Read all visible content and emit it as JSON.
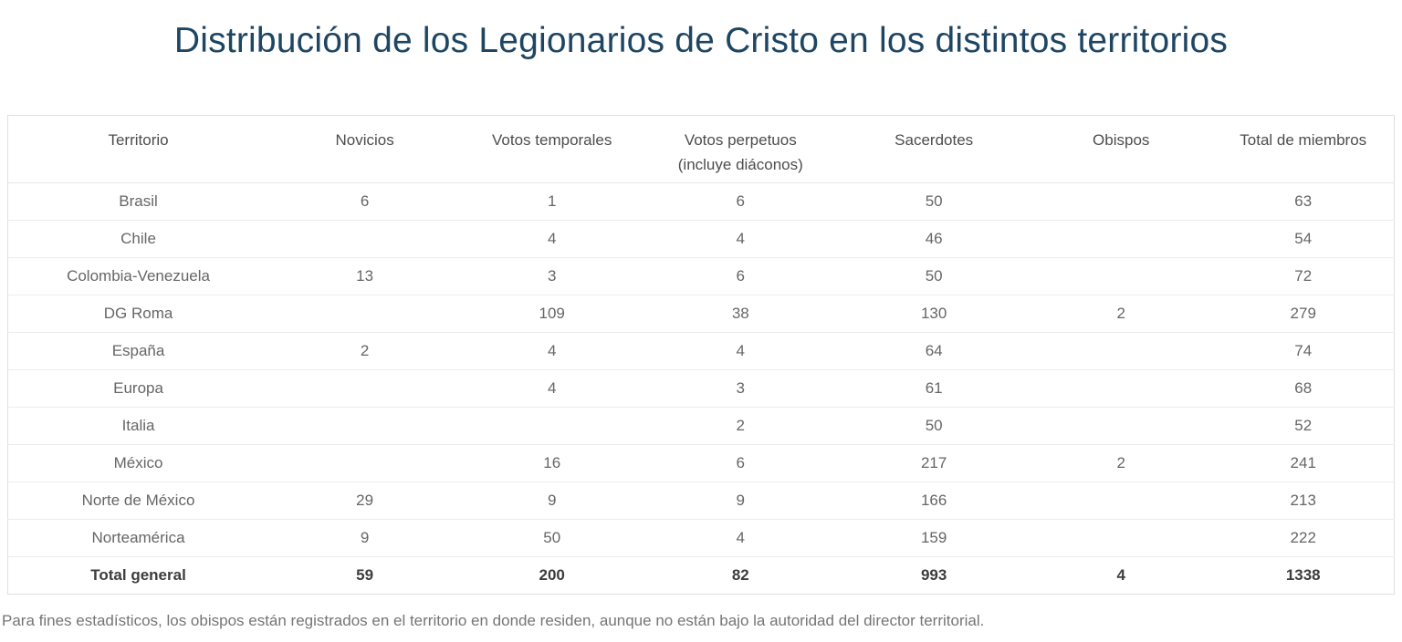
{
  "page": {
    "title": "Distribución de los Legionarios de Cristo en los distintos territorios",
    "footnote": "Para fines estadísticos, los obispos están registrados en el territorio en donde residen, aunque no están bajo la autoridad del director territorial."
  },
  "colors": {
    "title": "#1e4663",
    "header_text": "#4d4d4d",
    "cell_text": "#666666",
    "total_text": "#3d3d3d",
    "outer_border": "#dfdfdf",
    "row_separator": "#ececec",
    "footnote_text": "#757575"
  },
  "chart_data": {
    "type": "table",
    "title": "Distribución de los Legionarios de Cristo en los distintos territorios",
    "grid": "horizontal-only",
    "columns": [
      {
        "label": "Territorio",
        "sublabel": ""
      },
      {
        "label": "Novicios",
        "sublabel": ""
      },
      {
        "label": "Votos temporales",
        "sublabel": ""
      },
      {
        "label": "Votos perpetuos",
        "sublabel": "(incluye diáconos)"
      },
      {
        "label": "Sacerdotes",
        "sublabel": ""
      },
      {
        "label": "Obispos",
        "sublabel": ""
      },
      {
        "label": "Total de miembros",
        "sublabel": ""
      }
    ],
    "rows": [
      {
        "territorio": "Brasil",
        "values": [
          "6",
          "1",
          "6",
          "50",
          "",
          "63"
        ]
      },
      {
        "territorio": "Chile",
        "values": [
          "",
          "4",
          "4",
          "46",
          "",
          "54"
        ]
      },
      {
        "territorio": "Colombia-Venezuela",
        "values": [
          "13",
          "3",
          "6",
          "50",
          "",
          "72"
        ]
      },
      {
        "territorio": "DG Roma",
        "values": [
          "",
          "109",
          "38",
          "130",
          "2",
          "279"
        ]
      },
      {
        "territorio": "España",
        "values": [
          "2",
          "4",
          "4",
          "64",
          "",
          "74"
        ]
      },
      {
        "territorio": "Europa",
        "values": [
          "",
          "4",
          "3",
          "61",
          "",
          "68"
        ]
      },
      {
        "territorio": "Italia",
        "values": [
          "",
          "",
          "2",
          "50",
          "",
          "52"
        ]
      },
      {
        "territorio": "México",
        "values": [
          "",
          "16",
          "6",
          "217",
          "2",
          "241"
        ]
      },
      {
        "territorio": "Norte de México",
        "values": [
          "29",
          "9",
          "9",
          "166",
          "",
          "213"
        ]
      },
      {
        "territorio": "Norteamérica",
        "values": [
          "9",
          "50",
          "4",
          "159",
          "",
          "222"
        ]
      }
    ],
    "total_row": {
      "territorio": "Total general",
      "values": [
        "59",
        "200",
        "82",
        "993",
        "4",
        "1338"
      ]
    }
  }
}
